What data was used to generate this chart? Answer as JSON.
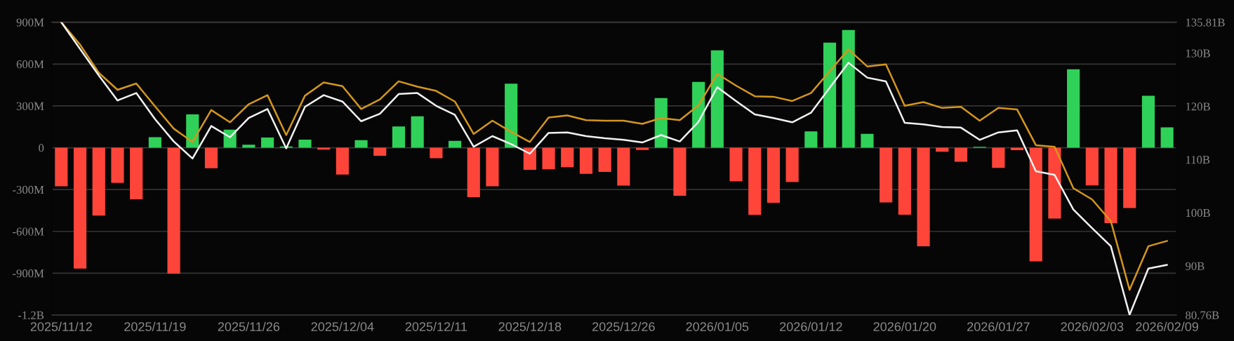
{
  "chart_data": {
    "type": "bar",
    "categories": [
      "2025/11/12",
      null,
      null,
      null,
      null,
      "2025/11/19",
      null,
      null,
      null,
      null,
      "2025/11/26",
      null,
      null,
      null,
      null,
      "2025/12/04",
      null,
      null,
      null,
      null,
      "2025/12/11",
      null,
      null,
      null,
      null,
      "2025/12/18",
      null,
      null,
      null,
      null,
      "2025/12/26",
      null,
      null,
      null,
      null,
      "2026/01/05",
      null,
      null,
      null,
      null,
      "2026/01/12",
      null,
      null,
      null,
      null,
      "2026/01/20",
      null,
      null,
      null,
      null,
      "2026/01/27",
      null,
      null,
      null,
      null,
      "2026/02/03",
      null,
      null,
      null,
      "2026/02/09"
    ],
    "series": [
      {
        "values": [
          -276000000,
          -866000000,
          -487000000,
          -252000000,
          -370000000,
          76000000,
          -903000000,
          239000000,
          -147000000,
          130000000,
          21000000,
          73000000,
          9000000,
          58000000,
          -14000000,
          -192000000,
          54000000,
          -58000000,
          152000000,
          225000000,
          -75000000,
          49000000,
          -355000000,
          -276000000,
          459000000,
          -158000000,
          -155000000,
          -140000000,
          -187000000,
          -174000000,
          -272000000,
          -16000000,
          356000000,
          -345000000,
          472000000,
          698000000,
          -241000000,
          -482000000,
          -395000000,
          -246000000,
          117000000,
          754000000,
          844000000,
          100000000,
          -392000000,
          -481000000,
          -707000000,
          -29000000,
          -101000000,
          6000000,
          -145000000,
          -18000000,
          -815000000,
          -508000000,
          563000000,
          -270000000,
          -541000000,
          -432000000,
          372000000,
          146000000
        ],
        "colors": [
          "#ff453a",
          "#ff453a",
          "#ff453a",
          "#ff453a",
          "#ff453a",
          "#30d158",
          "#ff453a",
          "#30d158",
          "#ff453a",
          "#30d158",
          "#30d158",
          "#30d158",
          "#30d158",
          "#30d158",
          "#ff453a",
          "#ff453a",
          "#30d158",
          "#ff453a",
          "#30d158",
          "#30d158",
          "#ff453a",
          "#30d158",
          "#ff453a",
          "#ff453a",
          "#30d158",
          "#ff453a",
          "#ff453a",
          "#ff453a",
          "#ff453a",
          "#ff453a",
          "#ff453a",
          "#ff453a",
          "#30d158",
          "#ff453a",
          "#30d158",
          "#30d158",
          "#ff453a",
          "#ff453a",
          "#ff453a",
          "#ff453a",
          "#30d158",
          "#30d158",
          "#30d158",
          "#30d158",
          "#ff453a",
          "#ff453a",
          "#ff453a",
          "#ff453a",
          "#ff453a",
          "#30d158",
          "#ff453a",
          "#ff453a",
          "#ff453a",
          "#ff453a",
          "#30d158",
          "#ff453a",
          "#ff453a",
          "#ff453a",
          "#30d158",
          "#30d158"
        ]
      },
      {
        "type": "line",
        "axis": "y2",
        "color": "#d4961c",
        "values": [
          135.8,
          131.6,
          126.3,
          123.1,
          124.3,
          120.0,
          115.8,
          113.3,
          119.3,
          117.0,
          120.4,
          122.1,
          114.6,
          122.0,
          124.5,
          123.8,
          119.5,
          121.3,
          124.7,
          123.7,
          122.9,
          120.9,
          114.8,
          117.3,
          115.2,
          113.3,
          117.9,
          118.3,
          117.4,
          117.3,
          117.3,
          116.7,
          117.8,
          117.4,
          120.2,
          126.1,
          123.9,
          121.9,
          121.8,
          121.0,
          122.5,
          126.6,
          130.7,
          127.5,
          127.9,
          120.1,
          120.8,
          119.7,
          119.9,
          117.3,
          119.7,
          119.4,
          112.7,
          112.4,
          104.6,
          102.5,
          98.4,
          85.5,
          93.7,
          94.7
        ]
      },
      {
        "type": "line",
        "axis": "y2",
        "color": "#f2f2f2",
        "values": [
          135.8,
          130.8,
          125.8,
          121.1,
          122.5,
          117.6,
          113.4,
          110.2,
          116.3,
          114.2,
          117.8,
          119.5,
          112.1,
          119.9,
          122.1,
          120.9,
          117.2,
          118.6,
          122.3,
          122.5,
          120.1,
          118.4,
          112.4,
          114.4,
          112.9,
          111.1,
          115.0,
          115.1,
          114.4,
          114.0,
          113.7,
          113.2,
          114.6,
          113.4,
          117.1,
          123.6,
          121.0,
          118.5,
          117.8,
          117.0,
          118.8,
          123.5,
          128.2,
          125.4,
          124.7,
          116.9,
          116.6,
          116.1,
          116.0,
          113.7,
          115.1,
          115.5,
          107.8,
          107.1,
          100.6,
          97.1,
          93.7,
          80.8,
          89.5,
          90.2
        ]
      }
    ],
    "ylim": [
      -1200000000,
      900000000
    ],
    "yticks": [
      {
        "value": -1200000000,
        "label": "-1.2B"
      },
      {
        "value": -900000000,
        "label": "-900M"
      },
      {
        "value": -600000000,
        "label": "-600M"
      },
      {
        "value": -300000000,
        "label": "-300M"
      },
      0,
      {
        "value": 300000000,
        "label": "300M"
      },
      {
        "value": 600000000,
        "label": "600M"
      },
      {
        "value": 900000000,
        "label": "900M"
      }
    ],
    "y2lim": [
      80.76,
      135.81
    ],
    "y2ticks": [
      {
        "value": 80.76,
        "label": "80.76B"
      },
      {
        "value": 90,
        "label": "90B"
      },
      {
        "value": 100,
        "label": "100B"
      },
      {
        "value": 110,
        "label": "110B"
      },
      {
        "value": 120,
        "label": "120B"
      },
      {
        "value": 130,
        "label": "130B"
      },
      {
        "value": 135.81,
        "label": "135.81B"
      }
    ],
    "grid": "y"
  }
}
